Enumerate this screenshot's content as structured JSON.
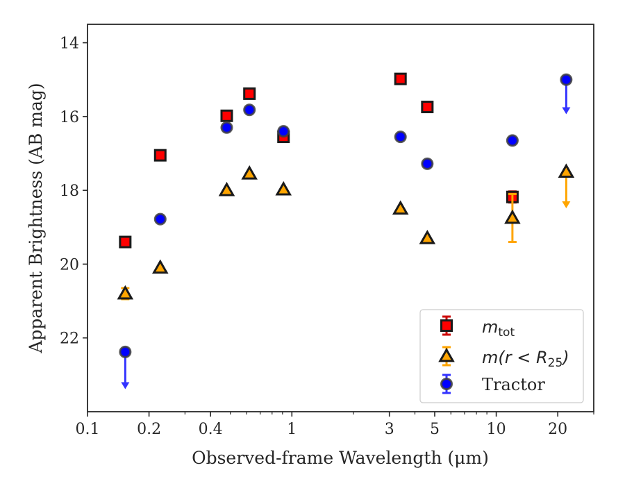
{
  "chart_data": {
    "type": "scatter",
    "title": "",
    "xlabel": "Observed-frame Wavelength (μm)",
    "ylabel": "Apparent Brightness (AB mag)",
    "xscale": "log",
    "xlim": [
      0.1,
      30
    ],
    "ylim": [
      24.0,
      13.5
    ],
    "y_inverted": true,
    "x_ticks": [
      0.1,
      0.2,
      0.4,
      1,
      3,
      5,
      10,
      20
    ],
    "x_tick_labels": [
      "0.1",
      "0.2",
      "0.4",
      "1",
      "3",
      "5",
      "10",
      "20"
    ],
    "y_ticks": [
      14,
      16,
      18,
      20,
      22
    ],
    "y_tick_labels": [
      "14",
      "16",
      "18",
      "20",
      "22"
    ],
    "grid": false,
    "legend_position": "lower-right",
    "series": [
      {
        "name": "m_tot",
        "legend_label": "mtot",
        "marker": "square",
        "color": "#ff0000",
        "edge_color": "#1a1a1a",
        "errorbar_color": "#cc0000",
        "points": [
          {
            "x": 0.153,
            "y": 19.4
          },
          {
            "x": 0.227,
            "y": 17.05
          },
          {
            "x": 0.48,
            "y": 15.98
          },
          {
            "x": 0.62,
            "y": 15.38
          },
          {
            "x": 0.91,
            "y": 16.55
          },
          {
            "x": 3.4,
            "y": 14.98
          },
          {
            "x": 4.6,
            "y": 15.74
          },
          {
            "x": 12.0,
            "y": 18.18,
            "err": 0.15
          }
        ]
      },
      {
        "name": "m(r < R25)",
        "legend_label": "m(r < R25)",
        "marker": "triangle",
        "color": "#ffa500",
        "edge_color": "#1a1a1a",
        "errorbar_color": "#ffa500",
        "points": [
          {
            "x": 0.153,
            "y": 20.8,
            "err": 0.15
          },
          {
            "x": 0.227,
            "y": 20.1
          },
          {
            "x": 0.48,
            "y": 18.0
          },
          {
            "x": 0.62,
            "y": 17.55
          },
          {
            "x": 0.91,
            "y": 17.98
          },
          {
            "x": 3.4,
            "y": 18.5
          },
          {
            "x": 4.6,
            "y": 19.3
          },
          {
            "x": 12.0,
            "y": 18.75,
            "err": 0.65
          },
          {
            "x": 22.0,
            "y": 17.5,
            "upper_limit_to": 18.45
          }
        ]
      },
      {
        "name": "Tractor",
        "legend_label": "Tractor",
        "marker": "circle",
        "color": "#0000ff",
        "edge_color": "#404040",
        "errorbar_color": "#3333ff",
        "points": [
          {
            "x": 0.153,
            "y": 22.38,
            "upper_limit_to": 23.35
          },
          {
            "x": 0.227,
            "y": 18.78
          },
          {
            "x": 0.48,
            "y": 16.3
          },
          {
            "x": 0.62,
            "y": 15.82
          },
          {
            "x": 0.91,
            "y": 16.4
          },
          {
            "x": 3.4,
            "y": 16.55
          },
          {
            "x": 4.6,
            "y": 17.28
          },
          {
            "x": 12.0,
            "y": 16.65
          },
          {
            "x": 22.0,
            "y": 15.0,
            "upper_limit_to": 15.9
          }
        ]
      }
    ]
  }
}
